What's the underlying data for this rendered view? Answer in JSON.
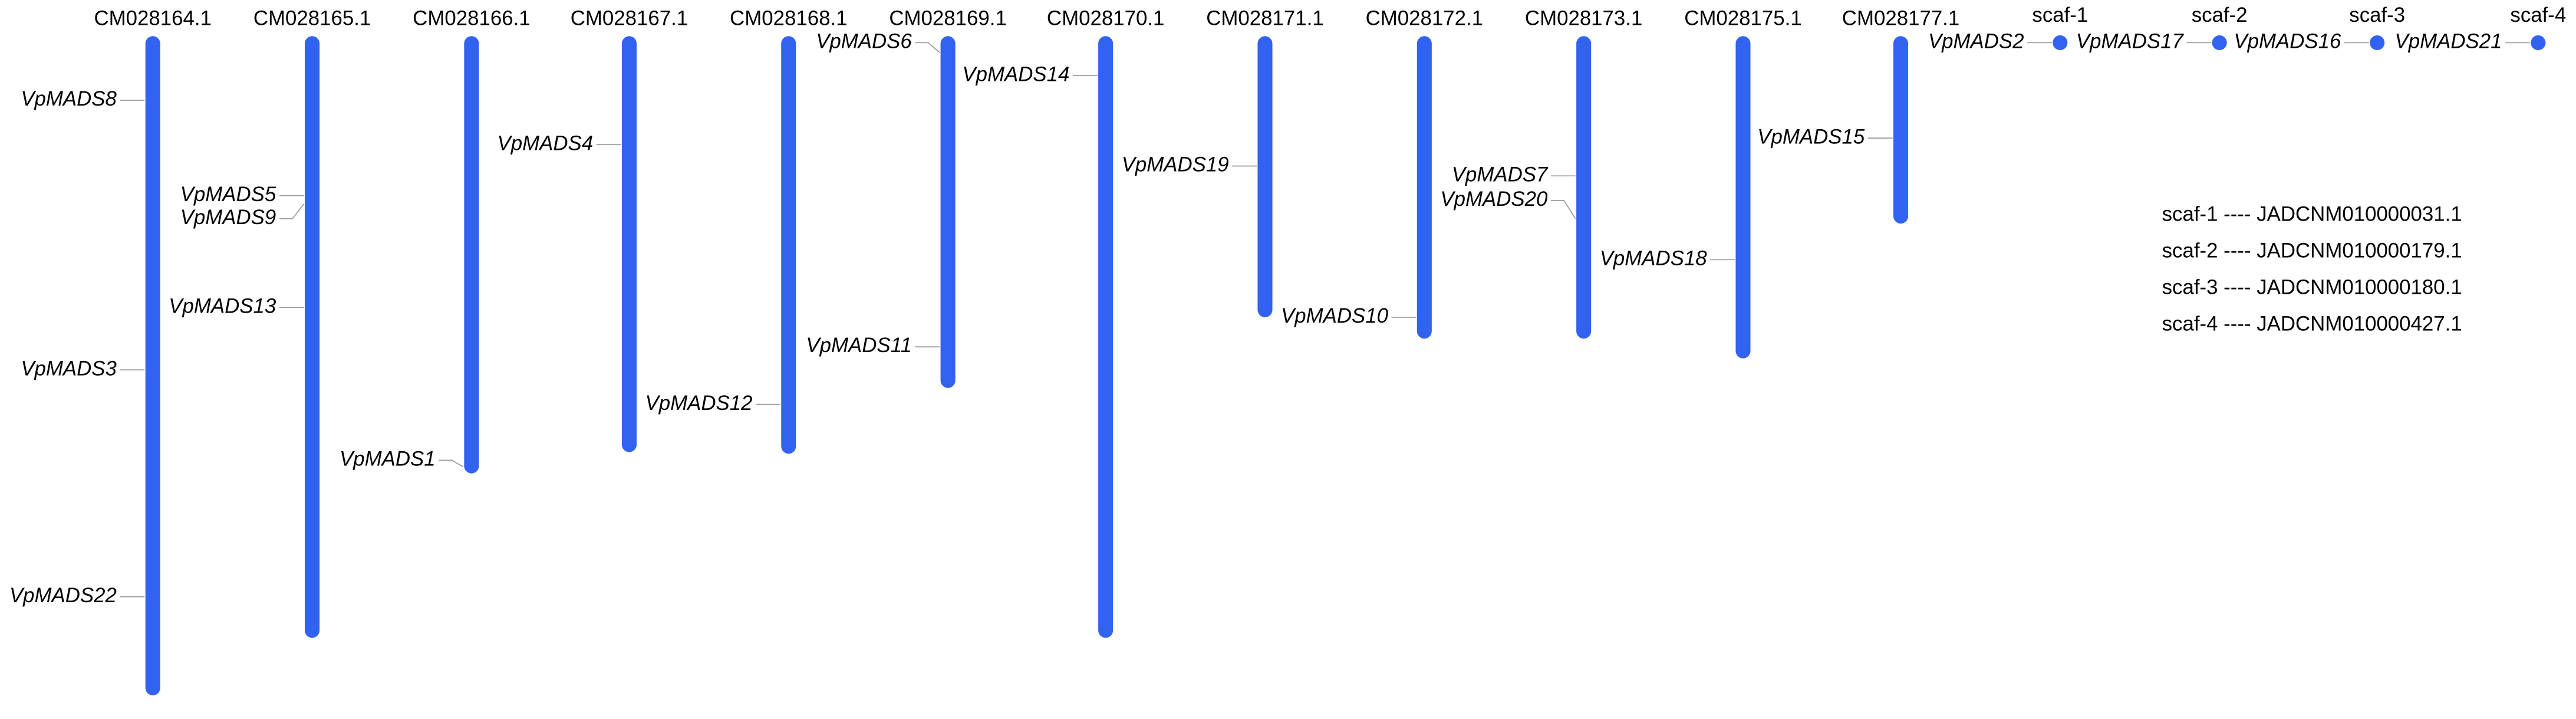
{
  "chromosomes": [
    {
      "name": "CM028164.1"
    },
    {
      "name": "CM028165.1"
    },
    {
      "name": "CM028166.1"
    },
    {
      "name": "CM028167.1"
    },
    {
      "name": "CM028168.1"
    },
    {
      "name": "CM028169.1"
    },
    {
      "name": "CM028170.1"
    },
    {
      "name": "CM028171.1"
    },
    {
      "name": "CM028172.1"
    },
    {
      "name": "CM028173.1"
    },
    {
      "name": "CM028175.1"
    },
    {
      "name": "CM028177.1"
    },
    {
      "name": "scaf-1"
    },
    {
      "name": "scaf-2"
    },
    {
      "name": "scaf-3"
    },
    {
      "name": "scaf-4"
    }
  ],
  "genes": [
    {
      "label": "VpMADS8",
      "chromosome": 0
    },
    {
      "label": "VpMADS3",
      "chromosome": 0
    },
    {
      "label": "VpMADS22",
      "chromosome": 0
    },
    {
      "label": "VpMADS5",
      "chromosome": 1
    },
    {
      "label": "VpMADS9",
      "chromosome": 1
    },
    {
      "label": "VpMADS13",
      "chromosome": 1
    },
    {
      "label": "VpMADS1",
      "chromosome": 2
    },
    {
      "label": "VpMADS4",
      "chromosome": 3
    },
    {
      "label": "VpMADS12",
      "chromosome": 4
    },
    {
      "label": "VpMADS6",
      "chromosome": 5
    },
    {
      "label": "VpMADS11",
      "chromosome": 5
    },
    {
      "label": "VpMADS14",
      "chromosome": 6
    },
    {
      "label": "VpMADS19",
      "chromosome": 7
    },
    {
      "label": "VpMADS10",
      "chromosome": 8
    },
    {
      "label": "VpMADS7",
      "chromosome": 9
    },
    {
      "label": "VpMADS20",
      "chromosome": 9
    },
    {
      "label": "VpMADS18",
      "chromosome": 10
    },
    {
      "label": "VpMADS15",
      "chromosome": 11
    },
    {
      "label": "VpMADS2",
      "chromosome": 12
    },
    {
      "label": "VpMADS17",
      "chromosome": 13
    },
    {
      "label": "VpMADS16",
      "chromosome": 14
    },
    {
      "label": "VpMADS21",
      "chromosome": 15
    }
  ],
  "legend": [
    "scaf-1 ---- JADCNM010000031.1",
    "scaf-2 ---- JADCNM010000179.1",
    "scaf-3 ---- JADCNM010000180.1",
    "scaf-4 ---- JADCNM010000427.1"
  ]
}
